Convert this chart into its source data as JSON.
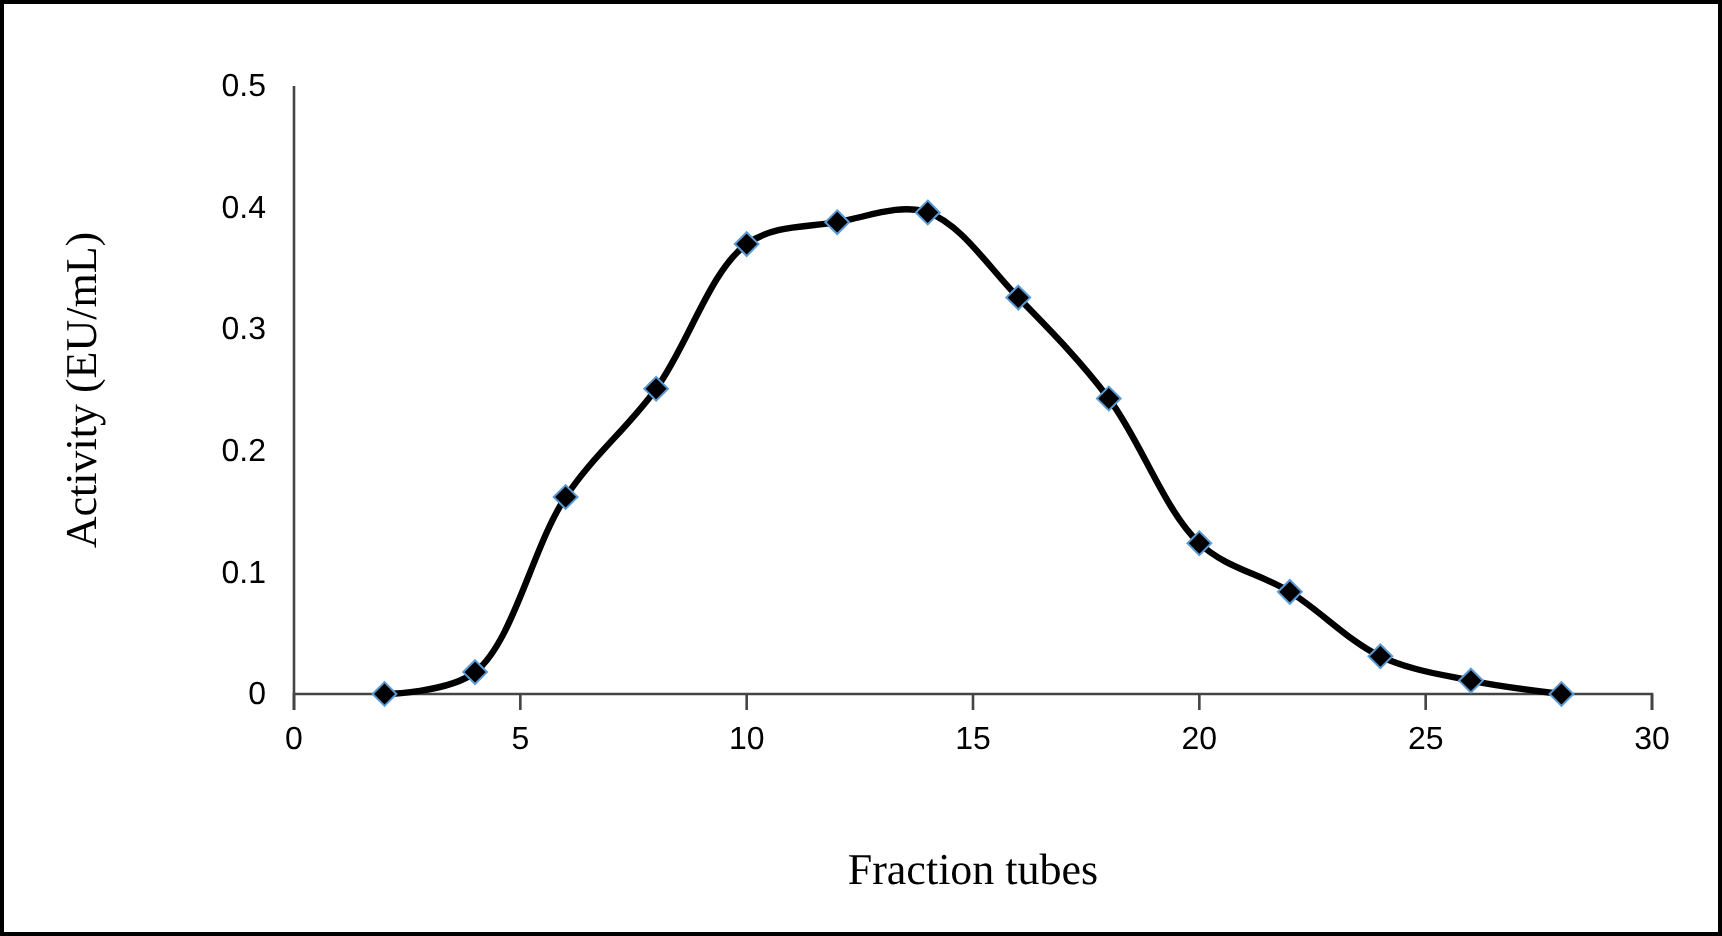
{
  "chart_data": {
    "type": "line",
    "xlabel": "Fraction tubes",
    "ylabel": "Activity (EU/mL)",
    "x": [
      2,
      4,
      6,
      8,
      10,
      12,
      14,
      16,
      18,
      20,
      22,
      24,
      26,
      28
    ],
    "series": [
      {
        "color": "#000000",
        "values": [
          0,
          0.018,
          0.162,
          0.251,
          0.37,
          0.388,
          0.396,
          0.326,
          0.243,
          0.124,
          0.084,
          0.031,
          0.011,
          0
        ]
      }
    ],
    "xlim": [
      0,
      30
    ],
    "xticks": [
      0,
      5,
      10,
      15,
      20,
      25,
      30
    ],
    "ylim": [
      0,
      0.5
    ],
    "yticks": [
      0,
      0.1,
      0.2,
      0.3,
      0.4,
      0.5
    ],
    "marker": "diamond",
    "line_style": "solid",
    "grid": false
  }
}
